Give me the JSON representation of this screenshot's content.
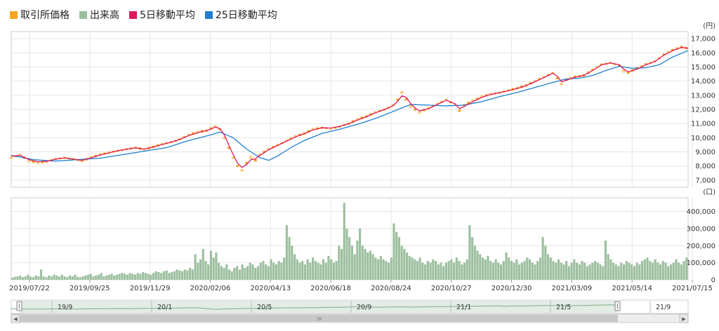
{
  "legend": [
    {
      "label": "取引所価格",
      "color": "#f5a623"
    },
    {
      "label": "出来高",
      "color": "#9cbf9f"
    },
    {
      "label": "5日移動平均",
      "color": "#e0195a"
    },
    {
      "label": "25日移動平均",
      "color": "#1f7fd4"
    }
  ],
  "colors": {
    "candle": "#f5a623",
    "volume": "#9cbf9f",
    "ma5": "#e0195a",
    "ma25": "#1f7fd4",
    "grid": "#e6e6e6",
    "frame": "#cccccc"
  },
  "chart_data": {
    "type": "line",
    "price_unit": "(円)",
    "volume_unit": "(口)",
    "price_ylim": [
      6500,
      17500
    ],
    "price_ticks": [
      "7,000",
      "8,000",
      "9,000",
      "10,000",
      "11,000",
      "12,000",
      "13,000",
      "14,000",
      "15,000",
      "16,000",
      "17,000"
    ],
    "volume_ylim": [
      0,
      480000
    ],
    "volume_ticks": [
      "0",
      "100,000",
      "200,000",
      "300,000",
      "400,000"
    ],
    "x_labels": [
      "2019/07/22",
      "2019/09/25",
      "2019/11/29",
      "2020/02/06",
      "2020/04/13",
      "2020/06/18",
      "2020/08/24",
      "2020/10/27",
      "2020/12/30",
      "2021/03/09",
      "2021/05/14",
      "2021/07/15"
    ],
    "series": [
      {
        "name": "取引所価格",
        "kind": "price",
        "points": [
          [
            0,
            8600
          ],
          [
            4,
            8800
          ],
          [
            8,
            8350
          ],
          [
            12,
            8250
          ],
          [
            16,
            8300
          ],
          [
            20,
            8500
          ],
          [
            24,
            8600
          ],
          [
            28,
            8500
          ],
          [
            32,
            8350
          ],
          [
            36,
            8600
          ],
          [
            40,
            8800
          ],
          [
            44,
            8950
          ],
          [
            48,
            9100
          ],
          [
            52,
            9200
          ],
          [
            56,
            9300
          ],
          [
            60,
            9150
          ],
          [
            64,
            9350
          ],
          [
            68,
            9550
          ],
          [
            72,
            9700
          ],
          [
            76,
            9900
          ],
          [
            80,
            10200
          ],
          [
            84,
            10400
          ],
          [
            88,
            10500
          ],
          [
            92,
            10800
          ],
          [
            94,
            10600
          ],
          [
            96,
            10000
          ],
          [
            98,
            9300
          ],
          [
            100,
            8600
          ],
          [
            102,
            8000
          ],
          [
            104,
            7700
          ],
          [
            106,
            8200
          ],
          [
            108,
            8600
          ],
          [
            110,
            8400
          ],
          [
            112,
            8800
          ],
          [
            116,
            9200
          ],
          [
            120,
            9500
          ],
          [
            124,
            9800
          ],
          [
            128,
            10100
          ],
          [
            132,
            10300
          ],
          [
            136,
            10600
          ],
          [
            140,
            10700
          ],
          [
            144,
            10650
          ],
          [
            148,
            10800
          ],
          [
            152,
            11000
          ],
          [
            156,
            11300
          ],
          [
            160,
            11500
          ],
          [
            164,
            11800
          ],
          [
            168,
            12000
          ],
          [
            172,
            12300
          ],
          [
            174,
            12700
          ],
          [
            176,
            13200
          ],
          [
            178,
            12700
          ],
          [
            180,
            12200
          ],
          [
            182,
            12000
          ],
          [
            184,
            11800
          ],
          [
            188,
            12100
          ],
          [
            192,
            12400
          ],
          [
            196,
            12700
          ],
          [
            200,
            12300
          ],
          [
            202,
            11900
          ],
          [
            204,
            12300
          ],
          [
            208,
            12600
          ],
          [
            212,
            12900
          ],
          [
            216,
            13100
          ],
          [
            220,
            13200
          ],
          [
            224,
            13350
          ],
          [
            228,
            13500
          ],
          [
            232,
            13700
          ],
          [
            236,
            14000
          ],
          [
            240,
            14300
          ],
          [
            244,
            14600
          ],
          [
            246,
            14200
          ],
          [
            248,
            13800
          ],
          [
            250,
            14100
          ],
          [
            254,
            14300
          ],
          [
            258,
            14400
          ],
          [
            262,
            14800
          ],
          [
            266,
            15200
          ],
          [
            270,
            15300
          ],
          [
            274,
            15100
          ],
          [
            276,
            14700
          ],
          [
            278,
            14600
          ],
          [
            282,
            14900
          ],
          [
            286,
            15200
          ],
          [
            290,
            15400
          ],
          [
            294,
            15900
          ],
          [
            298,
            16200
          ],
          [
            302,
            16400
          ],
          [
            305,
            16300
          ]
        ]
      },
      {
        "name": "5日移動平均",
        "kind": "ma5",
        "points": [
          [
            0,
            8700
          ],
          [
            4,
            8750
          ],
          [
            8,
            8450
          ],
          [
            12,
            8300
          ],
          [
            16,
            8330
          ],
          [
            20,
            8480
          ],
          [
            24,
            8580
          ],
          [
            28,
            8480
          ],
          [
            32,
            8400
          ],
          [
            36,
            8580
          ],
          [
            40,
            8780
          ],
          [
            44,
            8930
          ],
          [
            48,
            9080
          ],
          [
            52,
            9180
          ],
          [
            56,
            9280
          ],
          [
            60,
            9200
          ],
          [
            64,
            9350
          ],
          [
            68,
            9520
          ],
          [
            72,
            9680
          ],
          [
            76,
            9880
          ],
          [
            80,
            10150
          ],
          [
            84,
            10350
          ],
          [
            88,
            10500
          ],
          [
            92,
            10750
          ],
          [
            94,
            10650
          ],
          [
            96,
            10200
          ],
          [
            98,
            9500
          ],
          [
            100,
            8800
          ],
          [
            102,
            8200
          ],
          [
            104,
            7900
          ],
          [
            106,
            8100
          ],
          [
            108,
            8450
          ],
          [
            110,
            8500
          ],
          [
            112,
            8750
          ],
          [
            116,
            9150
          ],
          [
            120,
            9450
          ],
          [
            124,
            9750
          ],
          [
            128,
            10050
          ],
          [
            132,
            10280
          ],
          [
            136,
            10550
          ],
          [
            140,
            10700
          ],
          [
            144,
            10680
          ],
          [
            148,
            10800
          ],
          [
            152,
            10980
          ],
          [
            156,
            11250
          ],
          [
            160,
            11480
          ],
          [
            164,
            11750
          ],
          [
            168,
            11980
          ],
          [
            172,
            12250
          ],
          [
            174,
            12550
          ],
          [
            176,
            12950
          ],
          [
            178,
            12850
          ],
          [
            180,
            12400
          ],
          [
            182,
            12100
          ],
          [
            184,
            11900
          ],
          [
            188,
            12050
          ],
          [
            192,
            12350
          ],
          [
            196,
            12650
          ],
          [
            200,
            12400
          ],
          [
            202,
            12050
          ],
          [
            204,
            12200
          ],
          [
            208,
            12550
          ],
          [
            212,
            12850
          ],
          [
            216,
            13050
          ],
          [
            220,
            13180
          ],
          [
            224,
            13320
          ],
          [
            228,
            13480
          ],
          [
            232,
            13680
          ],
          [
            236,
            13950
          ],
          [
            240,
            14250
          ],
          [
            244,
            14550
          ],
          [
            246,
            14350
          ],
          [
            248,
            13950
          ],
          [
            250,
            14050
          ],
          [
            254,
            14280
          ],
          [
            258,
            14400
          ],
          [
            262,
            14750
          ],
          [
            266,
            15150
          ],
          [
            270,
            15280
          ],
          [
            274,
            15150
          ],
          [
            276,
            14850
          ],
          [
            278,
            14650
          ],
          [
            282,
            14850
          ],
          [
            286,
            15150
          ],
          [
            290,
            15380
          ],
          [
            294,
            15820
          ],
          [
            298,
            16150
          ],
          [
            302,
            16380
          ],
          [
            305,
            16320
          ]
        ]
      },
      {
        "name": "25日移動平均",
        "kind": "ma25",
        "points": [
          [
            0,
            8750
          ],
          [
            10,
            8450
          ],
          [
            20,
            8350
          ],
          [
            30,
            8450
          ],
          [
            40,
            8550
          ],
          [
            50,
            8800
          ],
          [
            60,
            9050
          ],
          [
            70,
            9300
          ],
          [
            80,
            9800
          ],
          [
            90,
            10200
          ],
          [
            94,
            10400
          ],
          [
            100,
            10000
          ],
          [
            106,
            9200
          ],
          [
            112,
            8600
          ],
          [
            116,
            8400
          ],
          [
            120,
            8700
          ],
          [
            126,
            9300
          ],
          [
            132,
            9800
          ],
          [
            140,
            10300
          ],
          [
            148,
            10600
          ],
          [
            156,
            10950
          ],
          [
            164,
            11350
          ],
          [
            172,
            11850
          ],
          [
            180,
            12350
          ],
          [
            188,
            12300
          ],
          [
            196,
            12250
          ],
          [
            204,
            12300
          ],
          [
            212,
            12550
          ],
          [
            220,
            12900
          ],
          [
            228,
            13200
          ],
          [
            236,
            13550
          ],
          [
            244,
            13900
          ],
          [
            250,
            14150
          ],
          [
            256,
            14200
          ],
          [
            262,
            14400
          ],
          [
            268,
            14750
          ],
          [
            274,
            15050
          ],
          [
            280,
            14900
          ],
          [
            286,
            14950
          ],
          [
            292,
            15150
          ],
          [
            298,
            15700
          ],
          [
            305,
            16150
          ]
        ]
      },
      {
        "name": "出来高",
        "kind": "volume",
        "values": [
          12000,
          18000,
          20000,
          25000,
          15000,
          20000,
          30000,
          18000,
          15000,
          25000,
          20000,
          60000,
          20000,
          15000,
          25000,
          20000,
          30000,
          25000,
          18000,
          30000,
          20000,
          15000,
          25000,
          20000,
          30000,
          18000,
          15000,
          20000,
          25000,
          30000,
          35000,
          20000,
          25000,
          30000,
          40000,
          20000,
          25000,
          30000,
          35000,
          25000,
          30000,
          35000,
          40000,
          35000,
          30000,
          40000,
          35000,
          30000,
          40000,
          35000,
          45000,
          40000,
          35000,
          30000,
          40000,
          50000,
          45000,
          40000,
          50000,
          55000,
          40000,
          45000,
          50000,
          60000,
          55000,
          50000,
          60000,
          55000,
          70000,
          60000,
          150000,
          100000,
          120000,
          180000,
          110000,
          90000,
          170000,
          130000,
          160000,
          100000,
          80000,
          70000,
          90000,
          60000,
          50000,
          70000,
          80000,
          60000,
          90000,
          70000,
          80000,
          100000,
          90000,
          70000,
          80000,
          100000,
          110000,
          90000,
          80000,
          120000,
          100000,
          90000,
          110000,
          100000,
          130000,
          320000,
          250000,
          200000,
          150000,
          120000,
          100000,
          110000,
          90000,
          120000,
          100000,
          130000,
          110000,
          100000,
          90000,
          120000,
          100000,
          140000,
          120000,
          100000,
          110000,
          200000,
          180000,
          450000,
          300000,
          250000,
          200000,
          150000,
          230000,
          300000,
          200000,
          180000,
          160000,
          170000,
          150000,
          130000,
          120000,
          140000,
          120000,
          110000,
          100000,
          130000,
          330000,
          280000,
          250000,
          200000,
          180000,
          160000,
          140000,
          130000,
          120000,
          110000,
          130000,
          100000,
          90000,
          110000,
          100000,
          120000,
          110000,
          90000,
          100000,
          80000,
          100000,
          110000,
          120000,
          100000,
          130000,
          110000,
          90000,
          100000,
          120000,
          320000,
          250000,
          200000,
          170000,
          150000,
          130000,
          120000,
          140000,
          110000,
          100000,
          120000,
          100000,
          90000,
          110000,
          160000,
          130000,
          110000,
          100000,
          120000,
          90000,
          100000,
          110000,
          130000,
          120000,
          100000,
          90000,
          110000,
          130000,
          250000,
          200000,
          150000,
          130000,
          110000,
          100000,
          120000,
          100000,
          90000,
          110000,
          80000,
          100000,
          120000,
          100000,
          90000,
          110000,
          100000,
          80000,
          90000,
          100000,
          110000,
          100000,
          90000,
          80000,
          230000,
          150000,
          120000,
          100000,
          90000,
          80000,
          100000,
          90000,
          110000,
          100000,
          90000,
          80000,
          100000,
          90000,
          110000,
          120000,
          130000,
          110000,
          100000,
          120000,
          100000,
          90000,
          110000,
          100000,
          80000,
          90000,
          100000,
          120000,
          100000,
          90000,
          110000,
          130000
        ]
      }
    ]
  },
  "navigator": {
    "labels": [
      "19/9",
      "20/1",
      "20/5",
      "20/9",
      "21/1",
      "21/5",
      "21/9"
    ]
  },
  "scrollbar": {
    "left_arrow": "◀",
    "right_arrow": "▶",
    "grip": "III"
  }
}
